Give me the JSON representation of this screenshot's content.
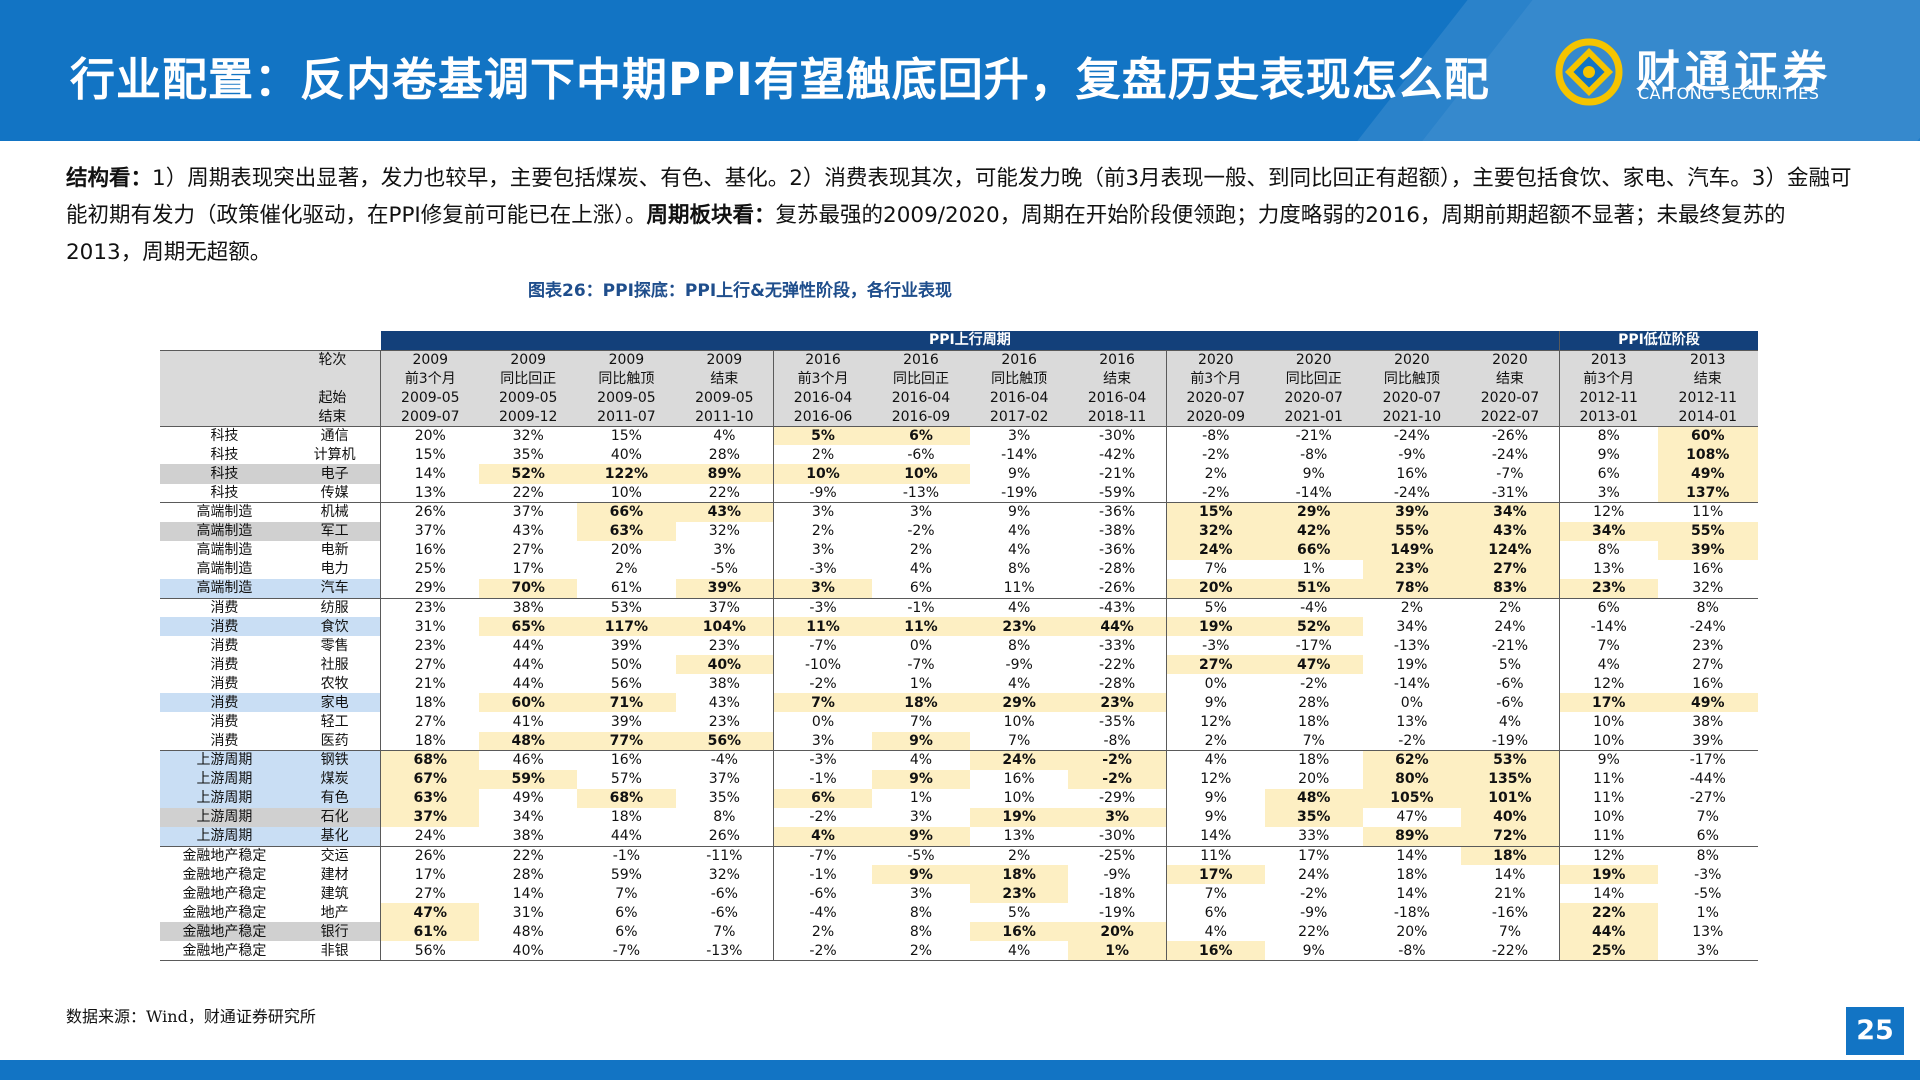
{
  "header": {
    "title": "行业配置：反内卷基调下中期PPI有望触底回升，复盘历史表现怎么配",
    "brand_cn": "财通证券",
    "brand_en": "CAITONG SECURITIES",
    "logo_icon": "caitong-coin-icon",
    "bg_color": "#1274c4"
  },
  "body": {
    "p1_bold": "结构看：",
    "p1_text": "1）周期表现突出显著，发力也较早，主要包括煤炭、有色、基化。2）消费表现其次，可能发力晚（前3月表现一般、到同比回正有超额），主要包括食饮、家电、汽车。3）金融可能初期有发力（政策催化驱动，在PPI修复前可能已在上涨）。",
    "p2_bold": "周期板块看：",
    "p2_text": "复苏最强的2009/2020，周期在开始阶段便领跑；力度略弱的2016，周期前期超额不显著；未最终复苏的2013，周期无超额。"
  },
  "figure": {
    "caption": "图表26：PPI探底：PPI上行&无弹性阶段，各行业表现"
  },
  "table": {
    "band_up": "PPI上行周期",
    "band_low": "PPI低位阶段",
    "label_round": "轮次",
    "label_start": "起始",
    "label_end": "结束",
    "columns": [
      {
        "year": "2009",
        "phase": "前3个月",
        "start": "2009-05",
        "end": "2009-07"
      },
      {
        "year": "2009",
        "phase": "同比回正",
        "start": "2009-05",
        "end": "2009-12"
      },
      {
        "year": "2009",
        "phase": "同比触顶",
        "start": "2009-05",
        "end": "2011-07"
      },
      {
        "year": "2009",
        "phase": "结束",
        "start": "2009-05",
        "end": "2011-10"
      },
      {
        "year": "2016",
        "phase": "前3个月",
        "start": "2016-04",
        "end": "2016-06"
      },
      {
        "year": "2016",
        "phase": "同比回正",
        "start": "2016-04",
        "end": "2016-09"
      },
      {
        "year": "2016",
        "phase": "同比触顶",
        "start": "2016-04",
        "end": "2017-02"
      },
      {
        "year": "2016",
        "phase": "结束",
        "start": "2016-04",
        "end": "2018-11"
      },
      {
        "year": "2020",
        "phase": "前3个月",
        "start": "2020-07",
        "end": "2020-09"
      },
      {
        "year": "2020",
        "phase": "同比回正",
        "start": "2020-07",
        "end": "2021-01"
      },
      {
        "year": "2020",
        "phase": "同比触顶",
        "start": "2020-07",
        "end": "2021-10"
      },
      {
        "year": "2020",
        "phase": "结束",
        "start": "2020-07",
        "end": "2022-07"
      },
      {
        "year": "2013",
        "phase": "前3个月",
        "start": "2012-11",
        "end": "2013-01"
      },
      {
        "year": "2013",
        "phase": "结束",
        "start": "2012-11",
        "end": "2014-01"
      }
    ],
    "highlight_color": "#fdefc3",
    "rows": [
      {
        "sector": "科技",
        "industry": "通信",
        "shade": "",
        "v": [
          "20%",
          "32%",
          "15%",
          "4%",
          "5%",
          "6%",
          "3%",
          "-30%",
          "-8%",
          "-21%",
          "-24%",
          "-26%",
          "8%",
          "60%"
        ],
        "hl": [
          4,
          5,
          13
        ]
      },
      {
        "sector": "科技",
        "industry": "计算机",
        "shade": "",
        "v": [
          "15%",
          "35%",
          "40%",
          "28%",
          "2%",
          "-6%",
          "-14%",
          "-42%",
          "-2%",
          "-8%",
          "-9%",
          "-24%",
          "9%",
          "108%"
        ],
        "hl": [
          13
        ]
      },
      {
        "sector": "科技",
        "industry": "电子",
        "shade": "gray",
        "v": [
          "14%",
          "52%",
          "122%",
          "89%",
          "10%",
          "10%",
          "9%",
          "-21%",
          "2%",
          "9%",
          "16%",
          "-7%",
          "6%",
          "49%"
        ],
        "hl": [
          1,
          2,
          3,
          4,
          5,
          13
        ]
      },
      {
        "sector": "科技",
        "industry": "传媒",
        "shade": "",
        "v": [
          "13%",
          "22%",
          "10%",
          "22%",
          "-9%",
          "-13%",
          "-19%",
          "-59%",
          "-2%",
          "-14%",
          "-24%",
          "-31%",
          "3%",
          "137%"
        ],
        "hl": [
          13
        ]
      },
      {
        "sector": "高端制造",
        "industry": "机械",
        "shade": "",
        "v": [
          "26%",
          "37%",
          "66%",
          "43%",
          "3%",
          "3%",
          "9%",
          "-36%",
          "15%",
          "29%",
          "39%",
          "34%",
          "12%",
          "11%"
        ],
        "hl": [
          2,
          3,
          8,
          9,
          10,
          11
        ]
      },
      {
        "sector": "高端制造",
        "industry": "军工",
        "shade": "gray",
        "v": [
          "37%",
          "43%",
          "63%",
          "32%",
          "2%",
          "-2%",
          "4%",
          "-38%",
          "32%",
          "42%",
          "55%",
          "43%",
          "34%",
          "55%"
        ],
        "hl": [
          2,
          8,
          9,
          10,
          11,
          12,
          13
        ]
      },
      {
        "sector": "高端制造",
        "industry": "电新",
        "shade": "",
        "v": [
          "16%",
          "27%",
          "20%",
          "3%",
          "3%",
          "2%",
          "4%",
          "-36%",
          "24%",
          "66%",
          "149%",
          "124%",
          "8%",
          "39%"
        ],
        "hl": [
          8,
          9,
          10,
          11,
          13
        ]
      },
      {
        "sector": "高端制造",
        "industry": "电力",
        "shade": "",
        "v": [
          "25%",
          "17%",
          "2%",
          "-5%",
          "-3%",
          "4%",
          "8%",
          "-28%",
          "7%",
          "1%",
          "23%",
          "27%",
          "13%",
          "16%"
        ],
        "hl": [
          10,
          11
        ]
      },
      {
        "sector": "高端制造",
        "industry": "汽车",
        "shade": "blue",
        "v": [
          "29%",
          "70%",
          "61%",
          "39%",
          "3%",
          "6%",
          "11%",
          "-26%",
          "20%",
          "51%",
          "78%",
          "83%",
          "23%",
          "32%"
        ],
        "hl": [
          1,
          3,
          4,
          8,
          9,
          10,
          11,
          12
        ]
      },
      {
        "sector": "消费",
        "industry": "纺服",
        "shade": "",
        "v": [
          "23%",
          "38%",
          "53%",
          "37%",
          "-3%",
          "-1%",
          "4%",
          "-43%",
          "5%",
          "-4%",
          "2%",
          "2%",
          "6%",
          "8%"
        ],
        "hl": []
      },
      {
        "sector": "消费",
        "industry": "食饮",
        "shade": "blue",
        "v": [
          "31%",
          "65%",
          "117%",
          "104%",
          "11%",
          "11%",
          "23%",
          "44%",
          "19%",
          "52%",
          "34%",
          "24%",
          "-14%",
          "-24%"
        ],
        "hl": [
          1,
          2,
          3,
          4,
          5,
          6,
          7,
          8,
          9
        ]
      },
      {
        "sector": "消费",
        "industry": "零售",
        "shade": "",
        "v": [
          "23%",
          "44%",
          "39%",
          "23%",
          "-7%",
          "0%",
          "8%",
          "-33%",
          "-3%",
          "-17%",
          "-13%",
          "-21%",
          "7%",
          "23%"
        ],
        "hl": []
      },
      {
        "sector": "消费",
        "industry": "社服",
        "shade": "",
        "v": [
          "27%",
          "44%",
          "50%",
          "40%",
          "-10%",
          "-7%",
          "-9%",
          "-22%",
          "27%",
          "47%",
          "19%",
          "5%",
          "4%",
          "27%"
        ],
        "hl": [
          3,
          8,
          9
        ]
      },
      {
        "sector": "消费",
        "industry": "农牧",
        "shade": "",
        "v": [
          "21%",
          "44%",
          "56%",
          "38%",
          "-2%",
          "1%",
          "4%",
          "-28%",
          "0%",
          "-2%",
          "-14%",
          "-6%",
          "12%",
          "16%"
        ],
        "hl": []
      },
      {
        "sector": "消费",
        "industry": "家电",
        "shade": "blue",
        "v": [
          "18%",
          "60%",
          "71%",
          "43%",
          "7%",
          "18%",
          "29%",
          "23%",
          "9%",
          "28%",
          "0%",
          "-6%",
          "17%",
          "49%"
        ],
        "hl": [
          1,
          2,
          4,
          5,
          6,
          7,
          12,
          13
        ]
      },
      {
        "sector": "消费",
        "industry": "轻工",
        "shade": "",
        "v": [
          "27%",
          "41%",
          "39%",
          "23%",
          "0%",
          "7%",
          "10%",
          "-35%",
          "12%",
          "18%",
          "13%",
          "4%",
          "10%",
          "38%"
        ],
        "hl": []
      },
      {
        "sector": "消费",
        "industry": "医药",
        "shade": "",
        "v": [
          "18%",
          "48%",
          "77%",
          "56%",
          "3%",
          "9%",
          "7%",
          "-8%",
          "2%",
          "7%",
          "-2%",
          "-19%",
          "10%",
          "39%"
        ],
        "hl": [
          1,
          2,
          3,
          5
        ]
      },
      {
        "sector": "上游周期",
        "industry": "钢铁",
        "shade": "blue",
        "v": [
          "68%",
          "46%",
          "16%",
          "-4%",
          "-3%",
          "4%",
          "24%",
          "-2%",
          "4%",
          "18%",
          "62%",
          "53%",
          "9%",
          "-17%"
        ],
        "hl": [
          0,
          6,
          7,
          10,
          11
        ]
      },
      {
        "sector": "上游周期",
        "industry": "煤炭",
        "shade": "blue",
        "v": [
          "67%",
          "59%",
          "57%",
          "37%",
          "-1%",
          "9%",
          "16%",
          "-2%",
          "12%",
          "20%",
          "80%",
          "135%",
          "11%",
          "-44%"
        ],
        "hl": [
          0,
          1,
          5,
          7,
          10,
          11
        ]
      },
      {
        "sector": "上游周期",
        "industry": "有色",
        "shade": "blue",
        "v": [
          "63%",
          "49%",
          "68%",
          "35%",
          "6%",
          "1%",
          "10%",
          "-29%",
          "9%",
          "48%",
          "105%",
          "101%",
          "11%",
          "-27%"
        ],
        "hl": [
          0,
          2,
          4,
          9,
          10,
          11
        ]
      },
      {
        "sector": "上游周期",
        "industry": "石化",
        "shade": "gray",
        "v": [
          "37%",
          "34%",
          "18%",
          "8%",
          "-2%",
          "3%",
          "19%",
          "3%",
          "9%",
          "35%",
          "47%",
          "40%",
          "10%",
          "7%"
        ],
        "hl": [
          0,
          6,
          7,
          9,
          11
        ]
      },
      {
        "sector": "上游周期",
        "industry": "基化",
        "shade": "blue",
        "v": [
          "24%",
          "38%",
          "44%",
          "26%",
          "4%",
          "9%",
          "13%",
          "-30%",
          "14%",
          "33%",
          "89%",
          "72%",
          "11%",
          "6%"
        ],
        "hl": [
          4,
          5,
          10,
          11
        ]
      },
      {
        "sector": "金融地产稳定",
        "industry": "交运",
        "shade": "",
        "v": [
          "26%",
          "22%",
          "-1%",
          "-11%",
          "-7%",
          "-5%",
          "2%",
          "-25%",
          "11%",
          "17%",
          "14%",
          "18%",
          "12%",
          "8%"
        ],
        "hl": [
          11
        ]
      },
      {
        "sector": "金融地产稳定",
        "industry": "建材",
        "shade": "",
        "v": [
          "17%",
          "28%",
          "59%",
          "32%",
          "-1%",
          "9%",
          "18%",
          "-9%",
          "17%",
          "24%",
          "18%",
          "14%",
          "19%",
          "-3%"
        ],
        "hl": [
          5,
          6,
          8,
          12
        ]
      },
      {
        "sector": "金融地产稳定",
        "industry": "建筑",
        "shade": "",
        "v": [
          "27%",
          "14%",
          "7%",
          "-6%",
          "-6%",
          "3%",
          "23%",
          "-18%",
          "7%",
          "-2%",
          "14%",
          "21%",
          "14%",
          "-5%"
        ],
        "hl": [
          6
        ]
      },
      {
        "sector": "金融地产稳定",
        "industry": "地产",
        "shade": "",
        "v": [
          "47%",
          "31%",
          "6%",
          "-6%",
          "-4%",
          "8%",
          "5%",
          "-19%",
          "6%",
          "-9%",
          "-18%",
          "-16%",
          "22%",
          "1%"
        ],
        "hl": [
          0,
          12
        ]
      },
      {
        "sector": "金融地产稳定",
        "industry": "银行",
        "shade": "gray",
        "v": [
          "61%",
          "48%",
          "6%",
          "7%",
          "2%",
          "8%",
          "16%",
          "20%",
          "4%",
          "22%",
          "20%",
          "7%",
          "44%",
          "13%"
        ],
        "hl": [
          0,
          6,
          7,
          12
        ]
      },
      {
        "sector": "金融地产稳定",
        "industry": "非银",
        "shade": "",
        "v": [
          "56%",
          "40%",
          "-7%",
          "-13%",
          "-2%",
          "2%",
          "4%",
          "1%",
          "16%",
          "9%",
          "-8%",
          "-22%",
          "25%",
          "3%"
        ],
        "hl": [
          7,
          8,
          12
        ]
      }
    ]
  },
  "footer": {
    "source": "数据来源：Wind，财通证券研究所",
    "page": "25"
  }
}
